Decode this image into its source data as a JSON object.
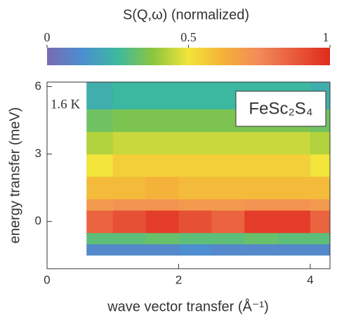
{
  "chart_data": {
    "type": "heatmap",
    "colorbar_label": "S(Q,ω) (normalized)",
    "xlabel": "wave vector transfer (Å⁻¹)",
    "ylabel": "energy transfer (meV)",
    "annotations": [
      "1.6 K",
      "FeSc₂S₄"
    ],
    "xlim": [
      0,
      4.3
    ],
    "xticks": [
      0,
      2,
      4
    ],
    "ylim": [
      -2.1,
      6.2
    ],
    "yticks": [
      0,
      3,
      6
    ],
    "clim": [
      0,
      1
    ],
    "cticks": [
      0,
      0.5,
      1
    ],
    "colorscale": [
      "#7a6ab2",
      "#4a8fd0",
      "#3db8a0",
      "#8cc63f",
      "#f2e43a",
      "#f5b03a",
      "#f28a5a",
      "#e85a3a",
      "#e02a1e"
    ],
    "x": [
      0.6,
      1,
      1.5,
      2,
      2.5,
      3,
      3.5,
      4,
      4.3
    ],
    "y": [
      -1.5,
      -1,
      -0.5,
      0.5,
      1,
      2,
      3,
      4,
      5,
      6.2
    ],
    "z": [
      [
        0.1,
        0.1,
        0.1,
        0.12,
        0.1,
        0.1,
        0.1,
        0.1
      ],
      [
        0.3,
        0.3,
        0.32,
        0.3,
        0.3,
        0.32,
        0.3,
        0.3
      ],
      [
        0.85,
        0.9,
        0.95,
        0.9,
        0.85,
        0.95,
        0.95,
        0.85
      ],
      [
        0.7,
        0.72,
        0.72,
        0.7,
        0.7,
        0.72,
        0.72,
        0.7
      ],
      [
        0.6,
        0.6,
        0.62,
        0.6,
        0.6,
        0.6,
        0.6,
        0.6
      ],
      [
        0.5,
        0.55,
        0.55,
        0.55,
        0.55,
        0.55,
        0.55,
        0.5
      ],
      [
        0.42,
        0.45,
        0.45,
        0.45,
        0.45,
        0.45,
        0.45,
        0.42
      ],
      [
        0.33,
        0.35,
        0.35,
        0.35,
        0.35,
        0.35,
        0.35,
        0.33
      ],
      [
        0.22,
        0.25,
        0.25,
        0.25,
        0.25,
        0.25,
        0.25,
        0.22
      ]
    ]
  }
}
